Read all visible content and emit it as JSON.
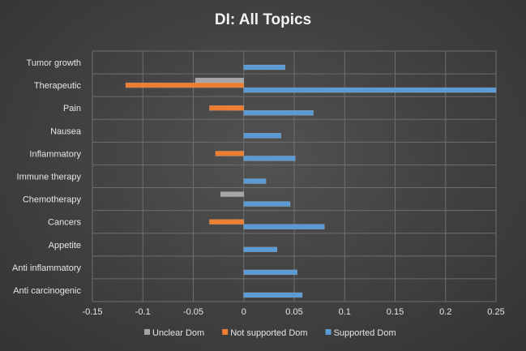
{
  "chart_data": {
    "type": "bar",
    "orientation": "horizontal",
    "title": "DI: All Topics",
    "categories": [
      "Tumor growth",
      "Therapeutic",
      "Pain",
      "Nausea",
      "Inflammatory",
      "Immune therapy",
      "Chemotherapy",
      "Cancers",
      "Appetite",
      "Anti inflammatory",
      "Anti carcinogenic"
    ],
    "series": [
      {
        "name": "Unclear Dom",
        "color": "#a5a5a5",
        "values": [
          0,
          -0.048,
          0,
          0,
          0,
          0,
          -0.023,
          0,
          0,
          0,
          0
        ]
      },
      {
        "name": "Not supported Dom",
        "color": "#ed7d31",
        "values": [
          0,
          -0.117,
          -0.034,
          0,
          -0.028,
          0,
          0,
          -0.034,
          0,
          0,
          0
        ]
      },
      {
        "name": "Supported Dom",
        "color": "#5b9bd5",
        "values": [
          0.041,
          0.25,
          0.069,
          0.037,
          0.051,
          0.022,
          0.046,
          0.08,
          0.033,
          0.053,
          0.058
        ]
      }
    ],
    "xlim": [
      -0.15,
      0.25
    ],
    "xticks": [
      -0.15,
      -0.1,
      -0.05,
      0,
      0.05,
      0.1,
      0.15,
      0.2,
      0.25
    ],
    "xtick_labels": [
      "-0.15",
      "-0.1",
      "-0.05",
      "0",
      "0.05",
      "0.1",
      "0.15",
      "0.2",
      "0.25"
    ],
    "grid": true,
    "legend_position": "bottom"
  }
}
